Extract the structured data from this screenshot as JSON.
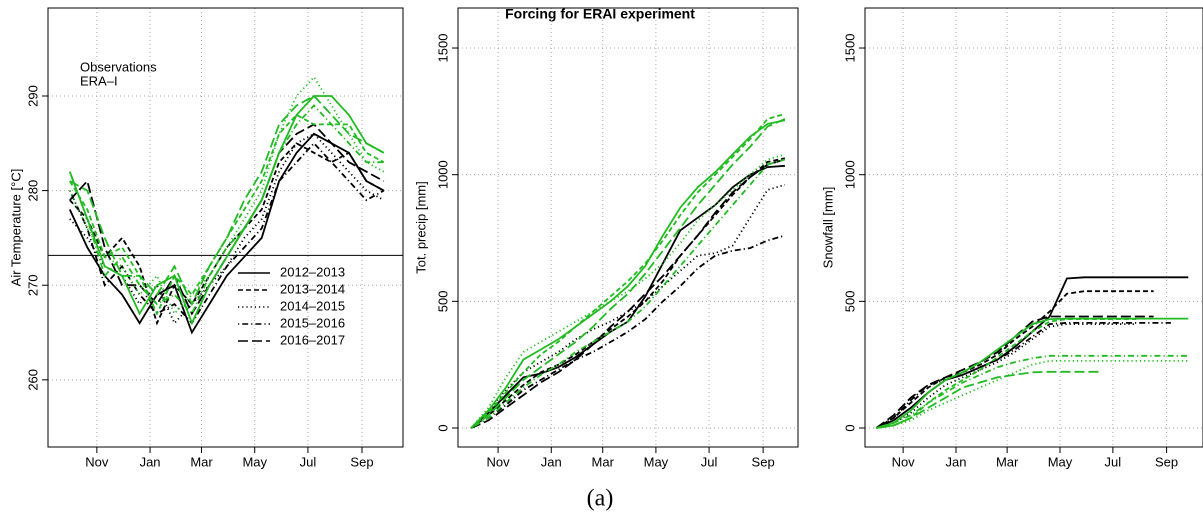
{
  "title": "Forcing for ERAI experiment",
  "caption": "(a)",
  "chart_data": [
    {
      "type": "line",
      "ylabel": "Air Temperature [°C]",
      "x": [
        0,
        20,
        40,
        60,
        80,
        100,
        120,
        140,
        160,
        180,
        200,
        220,
        240,
        260,
        280,
        300,
        320,
        340,
        360
      ],
      "xlim": [
        -25,
        382
      ],
      "xticks": [
        {
          "value": 31,
          "label": "Nov"
        },
        {
          "value": 92,
          "label": "Jan"
        },
        {
          "value": 151,
          "label": "Mar"
        },
        {
          "value": 212,
          "label": "May"
        },
        {
          "value": 273,
          "label": "Jul"
        },
        {
          "value": 335,
          "label": "Sep"
        }
      ],
      "ylim": [
        252.9,
        299.3
      ],
      "yticks": [
        260,
        270,
        280,
        290
      ],
      "grid": true,
      "hline": 273.15,
      "color_legend": [
        {
          "label": "Observations",
          "color": "#000000"
        },
        {
          "label": "ERA–I",
          "color": "#22bb22"
        }
      ],
      "series": [
        {
          "name": "2012–2013",
          "color": "#000000",
          "linestyle": "solid",
          "values": [
            278,
            274,
            271,
            269,
            266,
            269,
            270,
            265,
            268,
            271,
            273,
            275,
            281,
            284,
            286,
            285,
            284,
            281,
            280
          ]
        },
        {
          "name": "2013–2014",
          "color": "#000000",
          "linestyle": "dashed",
          "values": [
            279,
            277,
            273,
            275,
            272,
            266,
            270,
            268,
            271,
            274,
            276,
            278,
            283,
            285,
            284,
            283,
            284,
            281,
            280
          ]
        },
        {
          "name": "2014–2015",
          "color": "#000000",
          "linestyle": "dotted",
          "values": [
            277,
            275,
            272,
            271,
            268,
            270,
            266,
            268,
            270,
            272,
            275,
            277,
            282,
            285,
            286,
            284,
            282,
            280,
            279
          ]
        },
        {
          "name": "2015–2016",
          "color": "#000000",
          "linestyle": "dashdot",
          "values": [
            280,
            276,
            270,
            272,
            269,
            267,
            268,
            266,
            269,
            272,
            274,
            276,
            281,
            283,
            285,
            283,
            281,
            279,
            280
          ]
        },
        {
          "name": "2016–2017",
          "color": "#000000",
          "linestyle": "longdash",
          "values": [
            279,
            281,
            274,
            270,
            270,
            268,
            271,
            267,
            270,
            273,
            276,
            279,
            284,
            286,
            287,
            285,
            283,
            282,
            281
          ]
        },
        {
          "name": "2012–2013",
          "color": "#22bb22",
          "linestyle": "solid",
          "values": [
            282,
            277,
            272,
            271,
            267,
            270,
            271,
            266,
            270,
            273,
            276,
            279,
            284,
            288,
            290,
            290,
            288,
            285,
            284
          ]
        },
        {
          "name": "2013–2014",
          "color": "#22bb22",
          "linestyle": "dashed",
          "values": [
            281,
            278,
            273,
            274,
            271,
            267,
            271,
            269,
            272,
            275,
            278,
            281,
            286,
            288,
            287,
            287,
            287,
            284,
            283
          ]
        },
        {
          "name": "2014–2015",
          "color": "#22bb22",
          "linestyle": "dotted",
          "values": [
            280,
            276,
            273,
            272,
            269,
            271,
            267,
            269,
            271,
            274,
            277,
            280,
            286,
            290,
            292,
            289,
            286,
            283,
            282
          ]
        },
        {
          "name": "2015–2016",
          "color": "#22bb22",
          "linestyle": "dashdot",
          "values": [
            282,
            277,
            271,
            273,
            270,
            268,
            269,
            267,
            271,
            274,
            276,
            279,
            284,
            287,
            289,
            287,
            285,
            283,
            283
          ]
        },
        {
          "name": "2016–2017",
          "color": "#22bb22",
          "linestyle": "longdash",
          "values": [
            281,
            280,
            275,
            271,
            271,
            269,
            272,
            268,
            272,
            275,
            279,
            282,
            287,
            289,
            290,
            288,
            286,
            285,
            284
          ]
        }
      ]
    },
    {
      "type": "line",
      "ylabel": "Tot. precip [mm]",
      "x": [
        0,
        20,
        40,
        60,
        80,
        100,
        120,
        140,
        160,
        180,
        200,
        220,
        240,
        260,
        280,
        300,
        320,
        340,
        360
      ],
      "xlim": [
        -15,
        375
      ],
      "xticks": [
        {
          "value": 31,
          "label": "Nov"
        },
        {
          "value": 92,
          "label": "Jan"
        },
        {
          "value": 151,
          "label": "Mar"
        },
        {
          "value": 212,
          "label": "May"
        },
        {
          "value": 273,
          "label": "Jul"
        },
        {
          "value": 335,
          "label": "Sep"
        }
      ],
      "ylim": [
        -75,
        1658
      ],
      "yticks": [
        0,
        500,
        1000,
        1500
      ],
      "grid": true,
      "series": [
        {
          "color": "#000000",
          "linestyle": "solid",
          "values": [
            0,
            60,
            130,
            200,
            215,
            240,
            280,
            330,
            380,
            420,
            520,
            650,
            780,
            830,
            880,
            950,
            1000,
            1030,
            1035
          ]
        },
        {
          "color": "#000000",
          "linestyle": "dashed",
          "values": [
            0,
            50,
            110,
            170,
            220,
            250,
            290,
            340,
            390,
            440,
            500,
            580,
            680,
            760,
            840,
            920,
            990,
            1050,
            1065
          ]
        },
        {
          "color": "#000000",
          "linestyle": "dotted",
          "values": [
            0,
            70,
            150,
            220,
            260,
            300,
            350,
            390,
            420,
            460,
            500,
            560,
            620,
            680,
            690,
            720,
            830,
            940,
            960
          ]
        },
        {
          "color": "#000000",
          "linestyle": "dashdot",
          "values": [
            0,
            40,
            90,
            150,
            190,
            230,
            270,
            300,
            340,
            380,
            430,
            500,
            560,
            630,
            680,
            700,
            710,
            740,
            760
          ]
        },
        {
          "color": "#000000",
          "linestyle": "longdash",
          "values": [
            0,
            30,
            80,
            130,
            180,
            220,
            270,
            330,
            400,
            460,
            530,
            600,
            680,
            760,
            850,
            930,
            990,
            1040,
            1060
          ]
        },
        {
          "color": "#22bb22",
          "linestyle": "solid",
          "values": [
            0,
            70,
            160,
            270,
            310,
            350,
            400,
            450,
            500,
            560,
            640,
            760,
            870,
            950,
            1010,
            1080,
            1150,
            1200,
            1215
          ]
        },
        {
          "color": "#22bb22",
          "linestyle": "dashed",
          "values": [
            0,
            60,
            140,
            220,
            290,
            340,
            400,
            460,
            520,
            580,
            650,
            740,
            840,
            930,
            1000,
            1070,
            1140,
            1220,
            1240
          ]
        },
        {
          "color": "#22bb22",
          "linestyle": "dotted",
          "values": [
            0,
            80,
            200,
            300,
            340,
            380,
            420,
            460,
            500,
            540,
            590,
            650,
            730,
            820,
            880,
            940,
            1000,
            1060,
            1080
          ]
        },
        {
          "color": "#22bb22",
          "linestyle": "dashdot",
          "values": [
            0,
            40,
            100,
            160,
            210,
            250,
            300,
            340,
            380,
            420,
            480,
            560,
            640,
            720,
            800,
            880,
            960,
            1040,
            1060
          ]
        },
        {
          "color": "#22bb22",
          "linestyle": "longdash",
          "values": [
            0,
            50,
            120,
            190,
            240,
            290,
            340,
            400,
            470,
            530,
            610,
            700,
            790,
            880,
            960,
            1040,
            1110,
            1190,
            1220
          ]
        }
      ]
    },
    {
      "type": "line",
      "ylabel": "Snowfall [mm]",
      "x": [
        0,
        20,
        40,
        60,
        80,
        100,
        120,
        140,
        160,
        180,
        200,
        220,
        240,
        260,
        280,
        300,
        320,
        340,
        360
      ],
      "xlim": [
        -13,
        377
      ],
      "xticks": [
        {
          "value": 31,
          "label": "Nov"
        },
        {
          "value": 92,
          "label": "Jan"
        },
        {
          "value": 151,
          "label": "Mar"
        },
        {
          "value": 212,
          "label": "May"
        },
        {
          "value": 273,
          "label": "Jul"
        },
        {
          "value": 335,
          "label": "Sep"
        }
      ],
      "ylim": [
        -75,
        1658
      ],
      "yticks": [
        0,
        500,
        1000,
        1500
      ],
      "grid": true,
      "series": [
        {
          "color": "#000000",
          "linestyle": "solid",
          "values": [
            0,
            30,
            80,
            140,
            190,
            210,
            240,
            270,
            320,
            380,
            440,
            590,
            595,
            595,
            595,
            595,
            595,
            595,
            595
          ]
        },
        {
          "color": "#000000",
          "linestyle": "dashed",
          "values": [
            0,
            40,
            100,
            160,
            200,
            220,
            250,
            290,
            350,
            400,
            460,
            530,
            540,
            540,
            540,
            540,
            540,
            null,
            null
          ]
        },
        {
          "color": "#000000",
          "linestyle": "dotted",
          "values": [
            0,
            20,
            60,
            120,
            170,
            200,
            230,
            260,
            300,
            350,
            400,
            410,
            410,
            410,
            410,
            410,
            null,
            null,
            null
          ]
        },
        {
          "color": "#000000",
          "linestyle": "dashdot",
          "values": [
            0,
            40,
            110,
            170,
            190,
            210,
            240,
            270,
            310,
            360,
            410,
            415,
            415,
            415,
            415,
            415,
            415,
            415,
            null
          ]
        },
        {
          "color": "#000000",
          "linestyle": "longdash",
          "values": [
            0,
            50,
            120,
            170,
            200,
            230,
            260,
            300,
            360,
            420,
            440,
            440,
            440,
            440,
            440,
            440,
            440,
            null,
            null
          ]
        },
        {
          "color": "#22bb22",
          "linestyle": "solid",
          "values": [
            0,
            20,
            70,
            140,
            190,
            220,
            260,
            310,
            360,
            410,
            430,
            432,
            432,
            432,
            432,
            432,
            432,
            432,
            432
          ]
        },
        {
          "color": "#22bb22",
          "linestyle": "dashed",
          "values": [
            0,
            10,
            40,
            100,
            150,
            190,
            230,
            280,
            330,
            380,
            420,
            430,
            430,
            430,
            430,
            430,
            null,
            null,
            null
          ]
        },
        {
          "color": "#22bb22",
          "linestyle": "dotted",
          "values": [
            0,
            10,
            30,
            70,
            100,
            130,
            160,
            190,
            220,
            250,
            265,
            265,
            265,
            265,
            265,
            265,
            265,
            265,
            265
          ]
        },
        {
          "color": "#22bb22",
          "linestyle": "dashdot",
          "values": [
            0,
            20,
            50,
            100,
            140,
            180,
            210,
            240,
            260,
            275,
            285,
            285,
            285,
            285,
            285,
            285,
            285,
            285,
            285
          ]
        },
        {
          "color": "#22bb22",
          "linestyle": "longdash",
          "values": [
            0,
            10,
            40,
            80,
            120,
            160,
            180,
            200,
            210,
            220,
            222,
            222,
            222,
            222,
            null,
            null,
            null,
            null,
            null
          ]
        }
      ]
    }
  ]
}
